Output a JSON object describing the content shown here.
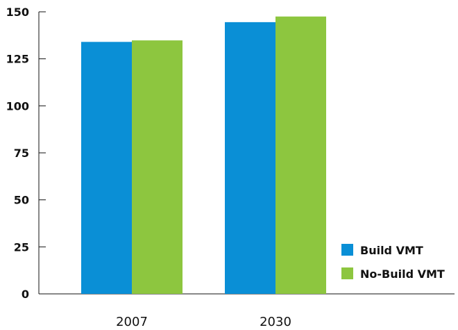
{
  "chart_data": {
    "type": "bar",
    "categories": [
      "2007",
      "2030"
    ],
    "series": [
      {
        "name": "Build VMT",
        "values": [
          134,
          144.5
        ],
        "color": "#0a8fd6"
      },
      {
        "name": "No-Build VMT",
        "values": [
          134.8,
          147.5
        ],
        "color": "#8dc63f"
      }
    ],
    "yticks": [
      "0",
      "25",
      "50",
      "75",
      "100",
      "125",
      "150"
    ],
    "ylim": [
      0,
      150
    ],
    "grid": false,
    "legend": "bottom-right",
    "title": "",
    "xlabel": "",
    "ylabel": ""
  }
}
